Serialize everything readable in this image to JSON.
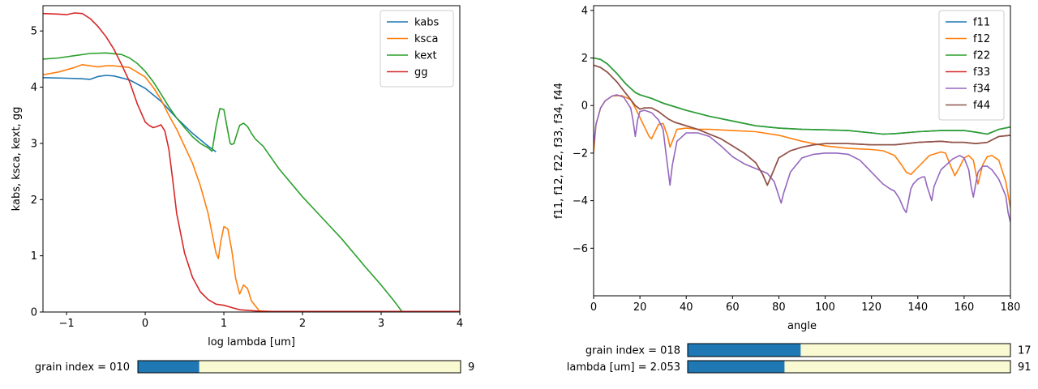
{
  "colors": {
    "c0": "#1f77b4",
    "c1": "#ff7f0e",
    "c2": "#2ca02c",
    "c3": "#d62728",
    "c4": "#9467bd",
    "c5": "#8c564b",
    "slider_track": "#fafad2"
  },
  "chart_data": [
    {
      "type": "line",
      "xlabel": "log lambda [um]",
      "ylabel": "kabs, ksca, kext, gg",
      "xlim": [
        -1.3,
        4.0
      ],
      "ylim": [
        0.0,
        5.45
      ],
      "xticks": [
        -1,
        0,
        1,
        2,
        3,
        4
      ],
      "yticks": [
        0,
        1,
        2,
        3,
        4,
        5
      ],
      "legend": "top-right",
      "grid": false,
      "series": [
        {
          "name": "kabs",
          "color_key": "c0",
          "x": [
            -1.3,
            -1.0,
            -0.8,
            -0.7,
            -0.6,
            -0.5,
            -0.4,
            -0.2,
            0.0,
            0.2,
            0.4,
            0.6,
            0.8,
            0.9
          ],
          "y": [
            4.17,
            4.16,
            4.15,
            4.14,
            4.19,
            4.21,
            4.2,
            4.13,
            3.98,
            3.75,
            3.45,
            3.18,
            2.95,
            2.85
          ]
        },
        {
          "name": "ksca",
          "color_key": "c1",
          "x": [
            -1.3,
            -1.1,
            -0.9,
            -0.8,
            -0.7,
            -0.6,
            -0.5,
            -0.4,
            -0.2,
            0.0,
            0.1,
            0.2,
            0.3,
            0.4,
            0.5,
            0.6,
            0.7,
            0.8,
            0.85,
            0.9,
            0.93,
            0.96,
            1.0,
            1.05,
            1.1,
            1.15,
            1.2,
            1.25,
            1.3,
            1.35,
            1.45,
            1.6,
            2.0,
            4.0
          ],
          "y": [
            4.22,
            4.27,
            4.35,
            4.4,
            4.38,
            4.36,
            4.38,
            4.38,
            4.35,
            4.18,
            4.0,
            3.78,
            3.5,
            3.25,
            2.95,
            2.65,
            2.25,
            1.75,
            1.4,
            1.05,
            0.95,
            1.25,
            1.52,
            1.48,
            1.1,
            0.6,
            0.32,
            0.48,
            0.42,
            0.2,
            0.02,
            0.01,
            0.01,
            0.01
          ]
        },
        {
          "name": "kext",
          "color_key": "c2",
          "x": [
            -1.3,
            -1.1,
            -0.9,
            -0.7,
            -0.5,
            -0.3,
            -0.2,
            -0.1,
            0.0,
            0.1,
            0.2,
            0.3,
            0.4,
            0.5,
            0.6,
            0.7,
            0.8,
            0.85,
            0.9,
            0.95,
            1.0,
            1.05,
            1.08,
            1.1,
            1.13,
            1.15,
            1.2,
            1.25,
            1.3,
            1.35,
            1.4,
            1.5,
            1.7,
            2.0,
            2.3,
            2.5,
            2.8,
            3.0,
            3.15,
            3.27,
            4.0
          ],
          "y": [
            4.5,
            4.52,
            4.56,
            4.6,
            4.61,
            4.58,
            4.52,
            4.42,
            4.28,
            4.1,
            3.88,
            3.65,
            3.45,
            3.28,
            3.12,
            3.0,
            2.92,
            2.86,
            3.3,
            3.62,
            3.6,
            3.22,
            3.0,
            2.98,
            3.0,
            3.1,
            3.32,
            3.36,
            3.3,
            3.18,
            3.08,
            2.95,
            2.55,
            2.05,
            1.6,
            1.3,
            0.8,
            0.48,
            0.22,
            0.0,
            0.0
          ]
        },
        {
          "name": "gg",
          "color_key": "c3",
          "x": [
            -1.3,
            -1.1,
            -1.0,
            -0.9,
            -0.8,
            -0.7,
            -0.6,
            -0.5,
            -0.4,
            -0.3,
            -0.2,
            -0.1,
            0.0,
            0.05,
            0.1,
            0.15,
            0.2,
            0.25,
            0.3,
            0.35,
            0.4,
            0.5,
            0.6,
            0.7,
            0.8,
            0.9,
            1.0,
            1.1,
            1.2,
            1.3,
            1.5,
            2.0,
            3.0,
            4.0
          ],
          "y": [
            5.31,
            5.3,
            5.29,
            5.32,
            5.31,
            5.22,
            5.08,
            4.9,
            4.68,
            4.4,
            4.1,
            3.7,
            3.38,
            3.32,
            3.28,
            3.3,
            3.33,
            3.22,
            2.9,
            2.35,
            1.75,
            1.05,
            0.62,
            0.36,
            0.22,
            0.14,
            0.12,
            0.08,
            0.04,
            0.03,
            0.01,
            0.01,
            0.01,
            0.01
          ]
        }
      ],
      "slider": {
        "label": "grain index = 010",
        "value_text": "9",
        "fraction": 0.19
      }
    },
    {
      "type": "line",
      "xlabel": "angle",
      "ylabel": "f11, f12, f22, f33, f34, f44",
      "xlim": [
        0,
        180
      ],
      "ylim": [
        -8.0,
        4.2
      ],
      "xticks": [
        0,
        20,
        40,
        60,
        80,
        100,
        120,
        140,
        160,
        180
      ],
      "yticks": [
        -6,
        -4,
        -2,
        0,
        2,
        4
      ],
      "legend": "top-right",
      "grid": false,
      "series": [
        {
          "name": "f11",
          "color_key": "c0",
          "x": [
            0,
            3,
            6,
            10,
            14,
            18,
            20,
            25,
            30,
            35,
            40,
            50,
            60,
            70,
            80,
            90,
            100,
            110,
            120,
            125,
            130,
            140,
            150,
            160,
            165,
            170,
            175,
            180
          ],
          "y": [
            2.0,
            1.94,
            1.75,
            1.35,
            0.9,
            0.55,
            0.45,
            0.3,
            0.1,
            -0.05,
            -0.2,
            -0.45,
            -0.65,
            -0.85,
            -0.95,
            -1.0,
            -1.02,
            -1.05,
            -1.15,
            -1.2,
            -1.18,
            -1.1,
            -1.05,
            -1.05,
            -1.12,
            -1.2,
            -1.0,
            -0.9
          ]
        },
        {
          "name": "f12",
          "color_key": "c1",
          "x": [
            0,
            1,
            3,
            5,
            8,
            12,
            16,
            18,
            20,
            22,
            24,
            25,
            26,
            28,
            30,
            32,
            33,
            34,
            36,
            40,
            45,
            50,
            60,
            70,
            80,
            90,
            100,
            110,
            120,
            125,
            130,
            133,
            135,
            137,
            140,
            145,
            150,
            152,
            154,
            156,
            158,
            160,
            162,
            164,
            166,
            168,
            170,
            172,
            175,
            178,
            180
          ],
          "y": [
            -2.0,
            -0.8,
            -0.1,
            0.2,
            0.4,
            0.42,
            0.25,
            -0.1,
            -0.5,
            -0.9,
            -1.3,
            -1.4,
            -1.2,
            -0.8,
            -0.75,
            -1.3,
            -1.75,
            -1.5,
            -1.0,
            -0.95,
            -1.0,
            -1.0,
            -1.05,
            -1.1,
            -1.25,
            -1.5,
            -1.7,
            -1.8,
            -1.85,
            -1.9,
            -2.1,
            -2.5,
            -2.8,
            -2.9,
            -2.6,
            -2.1,
            -1.95,
            -2.0,
            -2.5,
            -2.95,
            -2.6,
            -2.2,
            -2.1,
            -2.3,
            -3.3,
            -2.5,
            -2.15,
            -2.1,
            -2.3,
            -3.2,
            -4.3
          ]
        },
        {
          "name": "f22",
          "color_key": "c2",
          "x": [
            0,
            3,
            6,
            10,
            14,
            18,
            20,
            25,
            30,
            35,
            40,
            50,
            60,
            70,
            80,
            90,
            100,
            110,
            120,
            125,
            130,
            140,
            150,
            160,
            165,
            170,
            175,
            180
          ],
          "y": [
            2.0,
            1.94,
            1.75,
            1.35,
            0.9,
            0.55,
            0.45,
            0.3,
            0.1,
            -0.05,
            -0.2,
            -0.45,
            -0.65,
            -0.85,
            -0.95,
            -1.0,
            -1.02,
            -1.05,
            -1.15,
            -1.2,
            -1.18,
            -1.1,
            -1.05,
            -1.05,
            -1.12,
            -1.2,
            -1.0,
            -0.9
          ]
        },
        {
          "name": "f33",
          "color_key": "c3",
          "x": [
            0,
            3,
            6,
            10,
            14,
            18,
            20,
            22,
            25,
            28,
            30,
            32,
            35,
            40,
            45,
            50,
            55,
            60,
            65,
            70,
            73,
            75,
            77,
            80,
            85,
            90,
            95,
            100,
            110,
            120,
            130,
            140,
            150,
            155,
            160,
            165,
            170,
            175,
            180
          ],
          "y": [
            1.7,
            1.6,
            1.4,
            1.0,
            0.5,
            0.0,
            -0.15,
            -0.1,
            -0.1,
            -0.25,
            -0.4,
            -0.55,
            -0.7,
            -0.85,
            -1.0,
            -1.2,
            -1.4,
            -1.7,
            -2.0,
            -2.4,
            -2.9,
            -3.35,
            -2.9,
            -2.2,
            -1.9,
            -1.75,
            -1.65,
            -1.6,
            -1.6,
            -1.65,
            -1.65,
            -1.55,
            -1.5,
            -1.55,
            -1.55,
            -1.6,
            -1.55,
            -1.3,
            -1.25
          ]
        },
        {
          "name": "f34",
          "color_key": "c4",
          "x": [
            0,
            1,
            3,
            5,
            8,
            10,
            13,
            16,
            17,
            18,
            19,
            20,
            22,
            25,
            28,
            30,
            31,
            32,
            33,
            34,
            36,
            40,
            45,
            50,
            55,
            60,
            65,
            70,
            75,
            78,
            80,
            81,
            82,
            85,
            90,
            95,
            100,
            105,
            110,
            115,
            120,
            125,
            128,
            130,
            132,
            134,
            135,
            136,
            137,
            138,
            140,
            142,
            143,
            144,
            145,
            146,
            147,
            150,
            155,
            158,
            160,
            162,
            163,
            164,
            165,
            166,
            168,
            170,
            172,
            175,
            178,
            179,
            180
          ],
          "y": [
            -1.7,
            -0.8,
            -0.1,
            0.2,
            0.4,
            0.45,
            0.35,
            -0.1,
            -0.6,
            -1.3,
            -0.6,
            -0.25,
            -0.2,
            -0.3,
            -0.6,
            -1.0,
            -1.8,
            -2.6,
            -3.35,
            -2.5,
            -1.5,
            -1.15,
            -1.15,
            -1.3,
            -1.7,
            -2.15,
            -2.45,
            -2.65,
            -2.85,
            -3.2,
            -3.8,
            -4.1,
            -3.7,
            -2.8,
            -2.2,
            -2.05,
            -2.0,
            -2.0,
            -2.05,
            -2.3,
            -2.8,
            -3.3,
            -3.5,
            -3.6,
            -3.9,
            -4.35,
            -4.5,
            -4.0,
            -3.5,
            -3.3,
            -3.1,
            -3.0,
            -3.0,
            -3.4,
            -3.7,
            -4.0,
            -3.4,
            -2.7,
            -2.25,
            -2.1,
            -2.2,
            -2.7,
            -3.4,
            -3.85,
            -3.3,
            -2.8,
            -2.55,
            -2.55,
            -2.7,
            -3.1,
            -3.8,
            -4.5,
            -4.9
          ]
        },
        {
          "name": "f44",
          "color_key": "c5",
          "x": [
            0,
            3,
            6,
            10,
            14,
            18,
            20,
            22,
            25,
            28,
            30,
            32,
            35,
            40,
            45,
            50,
            55,
            60,
            65,
            70,
            73,
            75,
            77,
            80,
            85,
            90,
            95,
            100,
            110,
            120,
            130,
            140,
            150,
            155,
            160,
            165,
            170,
            175,
            180
          ],
          "y": [
            1.7,
            1.6,
            1.4,
            1.0,
            0.5,
            0.0,
            -0.15,
            -0.1,
            -0.1,
            -0.25,
            -0.4,
            -0.55,
            -0.7,
            -0.85,
            -1.0,
            -1.2,
            -1.4,
            -1.7,
            -2.0,
            -2.4,
            -2.9,
            -3.35,
            -2.9,
            -2.2,
            -1.9,
            -1.75,
            -1.65,
            -1.6,
            -1.6,
            -1.65,
            -1.65,
            -1.55,
            -1.5,
            -1.55,
            -1.55,
            -1.6,
            -1.55,
            -1.3,
            -1.25
          ]
        }
      ],
      "sliders": [
        {
          "label": "grain index = 018",
          "value_text": "17",
          "fraction": 0.35
        },
        {
          "label": "lambda [um] = 2.053",
          "value_text": "91",
          "fraction": 0.3
        }
      ]
    }
  ]
}
